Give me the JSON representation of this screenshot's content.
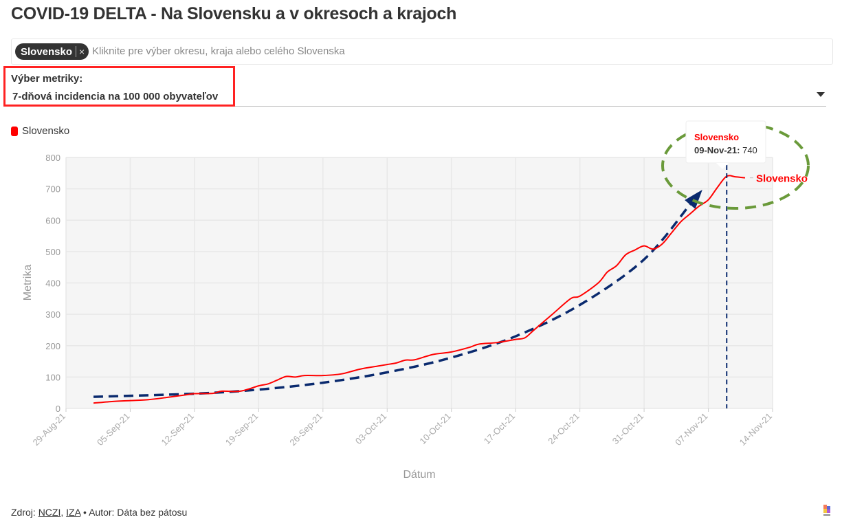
{
  "title": "COVID-19 DELTA - Na Slovensku a v okresoch a krajoch",
  "selector": {
    "chip": "Slovensko",
    "chip_remove": "×",
    "placeholder": "Kliknite pre výber okresu, kraja alebo celého Slovenska"
  },
  "metric": {
    "label": "Výber metriky:",
    "value": "7-dňová incidencia na 100 000 obyvateľov"
  },
  "legend": {
    "item": "Slovensko"
  },
  "tooltip": {
    "series": "Slovensko",
    "date": "09-Nov-21:",
    "value": "740"
  },
  "footer": {
    "prefix": "Zdroj:",
    "link1": "NCZI",
    "sep": ",",
    "link2": "IZA",
    "author": "• Autor: Dáta bez pátosu"
  },
  "chart_data": {
    "type": "line",
    "xlabel": "Dátum",
    "ylabel": "Metrika",
    "ylim": [
      0,
      800
    ],
    "yticks": [
      0,
      100,
      200,
      300,
      400,
      500,
      600,
      700,
      800
    ],
    "xlim": [
      "2021-08-29",
      "2021-11-14"
    ],
    "xticks": [
      "29-Aug-21",
      "05-Sep-21",
      "12-Sep-21",
      "19-Sep-21",
      "26-Sep-21",
      "03-Oct-21",
      "10-Oct-21",
      "17-Oct-21",
      "24-Oct-21",
      "31-Oct-21",
      "07-Nov-21",
      "14-Nov-21"
    ],
    "grid": true,
    "legend_position": "top-left",
    "series": [
      {
        "name": "Slovensko",
        "color": "#ff0000",
        "end_label": "Slovensko",
        "points": [
          [
            "2021-09-01",
            17
          ],
          [
            "2021-09-03",
            22
          ],
          [
            "2021-09-05",
            25
          ],
          [
            "2021-09-07",
            28
          ],
          [
            "2021-09-09",
            35
          ],
          [
            "2021-09-11",
            43
          ],
          [
            "2021-09-12",
            47
          ],
          [
            "2021-09-14",
            48
          ],
          [
            "2021-09-15",
            55
          ],
          [
            "2021-09-17",
            55
          ],
          [
            "2021-09-19",
            72
          ],
          [
            "2021-09-20",
            78
          ],
          [
            "2021-09-21",
            90
          ],
          [
            "2021-09-22",
            102
          ],
          [
            "2021-09-23",
            100
          ],
          [
            "2021-09-24",
            105
          ],
          [
            "2021-09-26",
            105
          ],
          [
            "2021-09-28",
            110
          ],
          [
            "2021-09-30",
            125
          ],
          [
            "2021-10-02",
            135
          ],
          [
            "2021-10-03",
            140
          ],
          [
            "2021-10-04",
            145
          ],
          [
            "2021-10-05",
            154
          ],
          [
            "2021-10-06",
            155
          ],
          [
            "2021-10-08",
            172
          ],
          [
            "2021-10-10",
            180
          ],
          [
            "2021-10-12",
            195
          ],
          [
            "2021-10-13",
            205
          ],
          [
            "2021-10-15",
            210
          ],
          [
            "2021-10-17",
            220
          ],
          [
            "2021-10-18",
            225
          ],
          [
            "2021-10-19",
            250
          ],
          [
            "2021-10-21",
            300
          ],
          [
            "2021-10-23",
            350
          ],
          [
            "2021-10-24",
            358
          ],
          [
            "2021-10-26",
            400
          ],
          [
            "2021-10-27",
            435
          ],
          [
            "2021-10-28",
            455
          ],
          [
            "2021-10-29",
            490
          ],
          [
            "2021-10-30",
            505
          ],
          [
            "2021-10-31",
            518
          ],
          [
            "2021-11-01",
            508
          ],
          [
            "2021-11-02",
            525
          ],
          [
            "2021-11-03",
            560
          ],
          [
            "2021-11-04",
            595
          ],
          [
            "2021-11-05",
            620
          ],
          [
            "2021-11-06",
            645
          ],
          [
            "2021-11-07",
            665
          ],
          [
            "2021-11-08",
            705
          ],
          [
            "2021-11-09",
            740
          ],
          [
            "2021-11-10",
            738
          ],
          [
            "2021-11-11",
            735
          ]
        ]
      }
    ],
    "annotations": {
      "trend_color": "#0a2a6e",
      "trend": [
        [
          "2021-09-01",
          37
        ],
        [
          "2021-09-12",
          47
        ],
        [
          "2021-09-19",
          60
        ],
        [
          "2021-09-26",
          82
        ],
        [
          "2021-10-03",
          115
        ],
        [
          "2021-10-10",
          162
        ],
        [
          "2021-10-17",
          230
        ],
        [
          "2021-10-24",
          330
        ],
        [
          "2021-10-31",
          475
        ],
        [
          "2021-11-05",
          650
        ]
      ],
      "vline_date": "2021-11-09",
      "highlight_color": "#6a9a3a",
      "box_color": "#ff2222"
    }
  }
}
